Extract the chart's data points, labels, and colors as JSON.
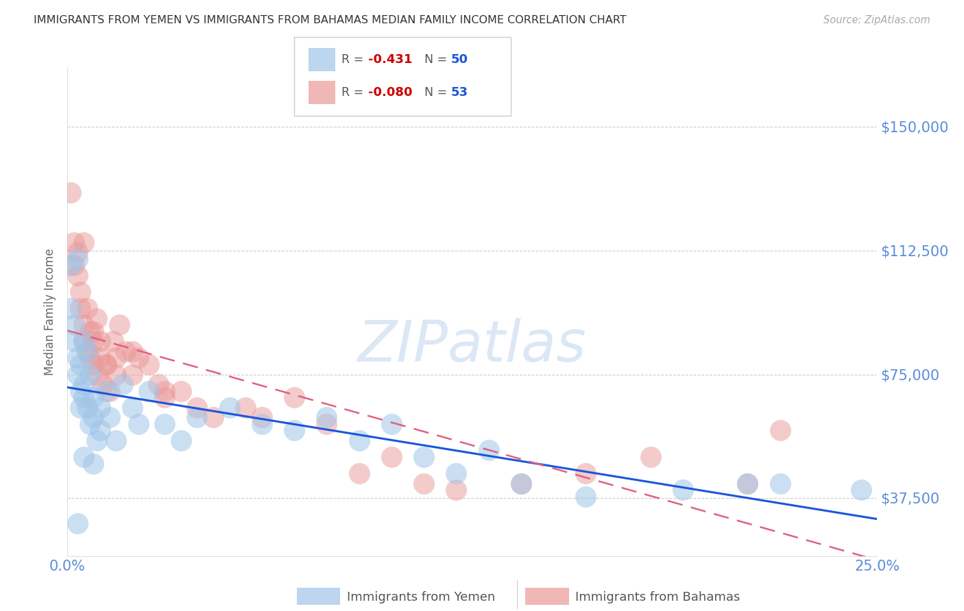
{
  "title": "IMMIGRANTS FROM YEMEN VS IMMIGRANTS FROM BAHAMAS MEDIAN FAMILY INCOME CORRELATION CHART",
  "source": "Source: ZipAtlas.com",
  "ylabel": "Median Family Income",
  "watermark": "ZIPatlas",
  "xlim": [
    0.0,
    0.25
  ],
  "ylim": [
    20000,
    168000
  ],
  "ytick_values": [
    37500,
    75000,
    112500,
    150000
  ],
  "ytick_labels": [
    "$37,500",
    "$75,000",
    "$112,500",
    "$150,000"
  ],
  "xtick_values": [
    0.0,
    0.05,
    0.1,
    0.15,
    0.2,
    0.25
  ],
  "xtick_labels": [
    "0.0%",
    "",
    "",
    "",
    "",
    "25.0%"
  ],
  "blue_color": "#9fc5e8",
  "pink_color": "#ea9999",
  "blue_line_color": "#1a56db",
  "pink_line_color": "#e06080",
  "grid_color": "#cccccc",
  "tick_color": "#5b8dd9",
  "yemen_R": -0.431,
  "yemen_N": 50,
  "bahamas_R": -0.08,
  "bahamas_N": 53,
  "yemen_x": [
    0.001,
    0.001,
    0.002,
    0.002,
    0.003,
    0.003,
    0.003,
    0.004,
    0.004,
    0.004,
    0.005,
    0.005,
    0.005,
    0.006,
    0.006,
    0.007,
    0.007,
    0.008,
    0.008,
    0.009,
    0.01,
    0.01,
    0.012,
    0.013,
    0.015,
    0.017,
    0.02,
    0.022,
    0.025,
    0.03,
    0.035,
    0.04,
    0.05,
    0.06,
    0.07,
    0.08,
    0.09,
    0.1,
    0.11,
    0.12,
    0.13,
    0.14,
    0.16,
    0.19,
    0.21,
    0.22,
    0.245,
    0.003,
    0.005,
    0.008
  ],
  "yemen_y": [
    108000,
    95000,
    90000,
    85000,
    110000,
    80000,
    75000,
    78000,
    70000,
    65000,
    85000,
    72000,
    68000,
    82000,
    65000,
    75000,
    60000,
    68000,
    62000,
    55000,
    58000,
    65000,
    70000,
    62000,
    55000,
    72000,
    65000,
    60000,
    70000,
    60000,
    55000,
    62000,
    65000,
    60000,
    58000,
    62000,
    55000,
    60000,
    50000,
    45000,
    52000,
    42000,
    38000,
    40000,
    42000,
    42000,
    40000,
    30000,
    50000,
    48000
  ],
  "bahamas_x": [
    0.001,
    0.002,
    0.002,
    0.003,
    0.003,
    0.004,
    0.004,
    0.005,
    0.005,
    0.006,
    0.006,
    0.007,
    0.007,
    0.008,
    0.008,
    0.009,
    0.009,
    0.01,
    0.01,
    0.011,
    0.012,
    0.013,
    0.014,
    0.015,
    0.016,
    0.018,
    0.02,
    0.022,
    0.025,
    0.028,
    0.03,
    0.035,
    0.04,
    0.045,
    0.055,
    0.06,
    0.07,
    0.08,
    0.09,
    0.1,
    0.11,
    0.12,
    0.14,
    0.16,
    0.18,
    0.21,
    0.22,
    0.005,
    0.008,
    0.012,
    0.015,
    0.02,
    0.03
  ],
  "bahamas_y": [
    130000,
    115000,
    108000,
    105000,
    112000,
    100000,
    95000,
    90000,
    85000,
    95000,
    82000,
    88000,
    80000,
    85000,
    78000,
    92000,
    75000,
    80000,
    85000,
    72000,
    78000,
    70000,
    85000,
    80000,
    90000,
    82000,
    75000,
    80000,
    78000,
    72000,
    68000,
    70000,
    65000,
    62000,
    65000,
    62000,
    68000,
    60000,
    45000,
    50000,
    42000,
    40000,
    42000,
    45000,
    50000,
    42000,
    58000,
    115000,
    88000,
    78000,
    75000,
    82000,
    70000
  ]
}
